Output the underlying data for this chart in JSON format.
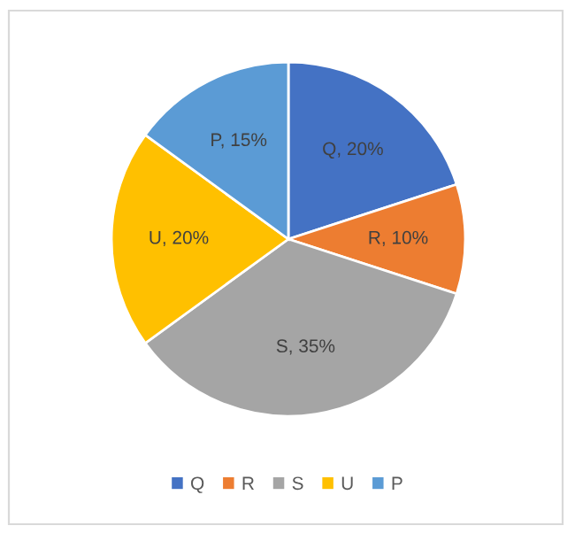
{
  "chart_data": {
    "type": "pie",
    "categories": [
      "Q",
      "R",
      "S",
      "U",
      "P"
    ],
    "values": [
      20,
      10,
      35,
      20,
      15
    ],
    "colors": [
      "#4472c4",
      "#ed7d31",
      "#a5a5a5",
      "#ffc000",
      "#5b9bd5"
    ],
    "value_labels": [
      "Q, 20%",
      "R, 10%",
      "S, 35%",
      "U, 20%",
      "P, 15%"
    ],
    "legend": "bottom"
  }
}
